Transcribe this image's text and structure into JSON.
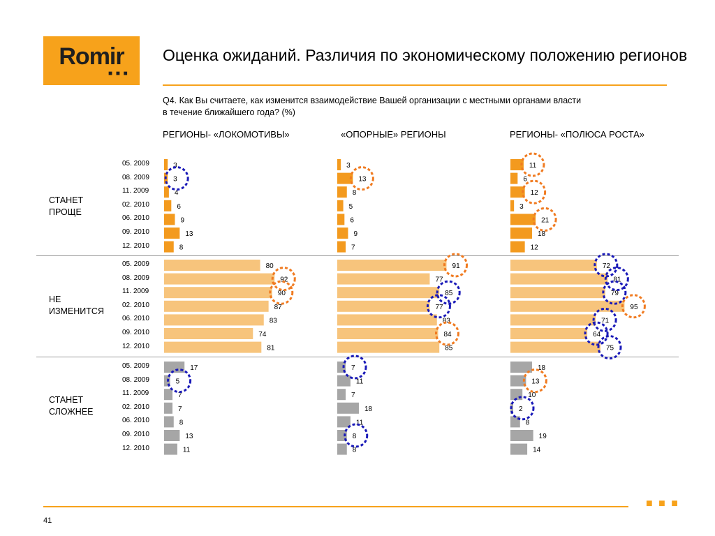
{
  "logo": {
    "text": "Romir"
  },
  "title": "Оценка ожиданий. Различия по экономическому положению регионов",
  "subtitle_line1": "Q4. Как Вы считаете, как изменится взаимодействие Вашей организации с местными органами власти",
  "subtitle_line2": "в течение ближайшего года? (%)",
  "page_number": "41",
  "colors": {
    "accent": "#f7a21b",
    "bar_easier": "#f39a1e",
    "bar_same": "#f7c47c",
    "bar_harder": "#a6a6a6",
    "circle_orange": "#f07b21",
    "circle_blue": "#1a1ab8"
  },
  "chart_data": {
    "type": "bar",
    "orientation": "horizontal",
    "columns": [
      "РЕГИОНЫ- «ЛОКОМОТИВЫ»",
      "«ОПОРНЫЕ» РЕГИОНЫ",
      "РЕГИОНЫ- «ПОЛЮСА РОСТА»"
    ],
    "categories": [
      "05. 2009",
      "08. 2009",
      "11. 2009",
      "02. 2010",
      "06. 2010",
      "09. 2010",
      "12. 2010"
    ],
    "groups": [
      {
        "label_line1": "СТАНЕТ",
        "label_line2": "ПРОЩЕ",
        "values": [
          [
            3,
            3,
            4,
            6,
            9,
            13,
            8
          ],
          [
            3,
            13,
            8,
            5,
            6,
            9,
            7
          ],
          [
            11,
            6,
            12,
            3,
            21,
            18,
            12
          ]
        ],
        "highlights": [
          {
            "column": 0,
            "index": 1,
            "color": "blue"
          },
          {
            "column": 1,
            "index": 1,
            "color": "orange"
          },
          {
            "column": 2,
            "index": 0,
            "color": "orange"
          },
          {
            "column": 2,
            "index": 2,
            "color": "orange"
          },
          {
            "column": 2,
            "index": 4,
            "color": "orange"
          }
        ]
      },
      {
        "label_line1": "НЕ",
        "label_line2": "ИЗМЕНИТСЯ",
        "values": [
          [
            80,
            92,
            90,
            87,
            83,
            74,
            81
          ],
          [
            91,
            77,
            85,
            77,
            83,
            84,
            85
          ],
          [
            72,
            81,
            79,
            95,
            71,
            64,
            75
          ]
        ],
        "highlights": [
          {
            "column": 0,
            "index": 1,
            "color": "orange"
          },
          {
            "column": 0,
            "index": 2,
            "color": "orange"
          },
          {
            "column": 1,
            "index": 0,
            "color": "orange"
          },
          {
            "column": 1,
            "index": 2,
            "color": "blue"
          },
          {
            "column": 1,
            "index": 3,
            "color": "blue"
          },
          {
            "column": 1,
            "index": 5,
            "color": "orange"
          },
          {
            "column": 2,
            "index": 0,
            "color": "blue"
          },
          {
            "column": 2,
            "index": 1,
            "color": "blue"
          },
          {
            "column": 2,
            "index": 2,
            "color": "blue"
          },
          {
            "column": 2,
            "index": 3,
            "color": "orange"
          },
          {
            "column": 2,
            "index": 4,
            "color": "blue"
          },
          {
            "column": 2,
            "index": 5,
            "color": "blue"
          },
          {
            "column": 2,
            "index": 6,
            "color": "blue"
          }
        ]
      },
      {
        "label_line1": "СТАНЕТ",
        "label_line2": "СЛОЖНЕЕ",
        "values": [
          [
            17,
            5,
            7,
            7,
            8,
            13,
            11
          ],
          [
            7,
            11,
            7,
            18,
            11,
            8,
            8
          ],
          [
            18,
            13,
            10,
            2,
            8,
            19,
            14
          ]
        ],
        "highlights": [
          {
            "column": 0,
            "index": 1,
            "color": "blue"
          },
          {
            "column": 1,
            "index": 0,
            "color": "blue"
          },
          {
            "column": 1,
            "index": 5,
            "color": "blue"
          },
          {
            "column": 2,
            "index": 1,
            "color": "orange"
          },
          {
            "column": 2,
            "index": 3,
            "color": "blue"
          }
        ]
      }
    ]
  }
}
